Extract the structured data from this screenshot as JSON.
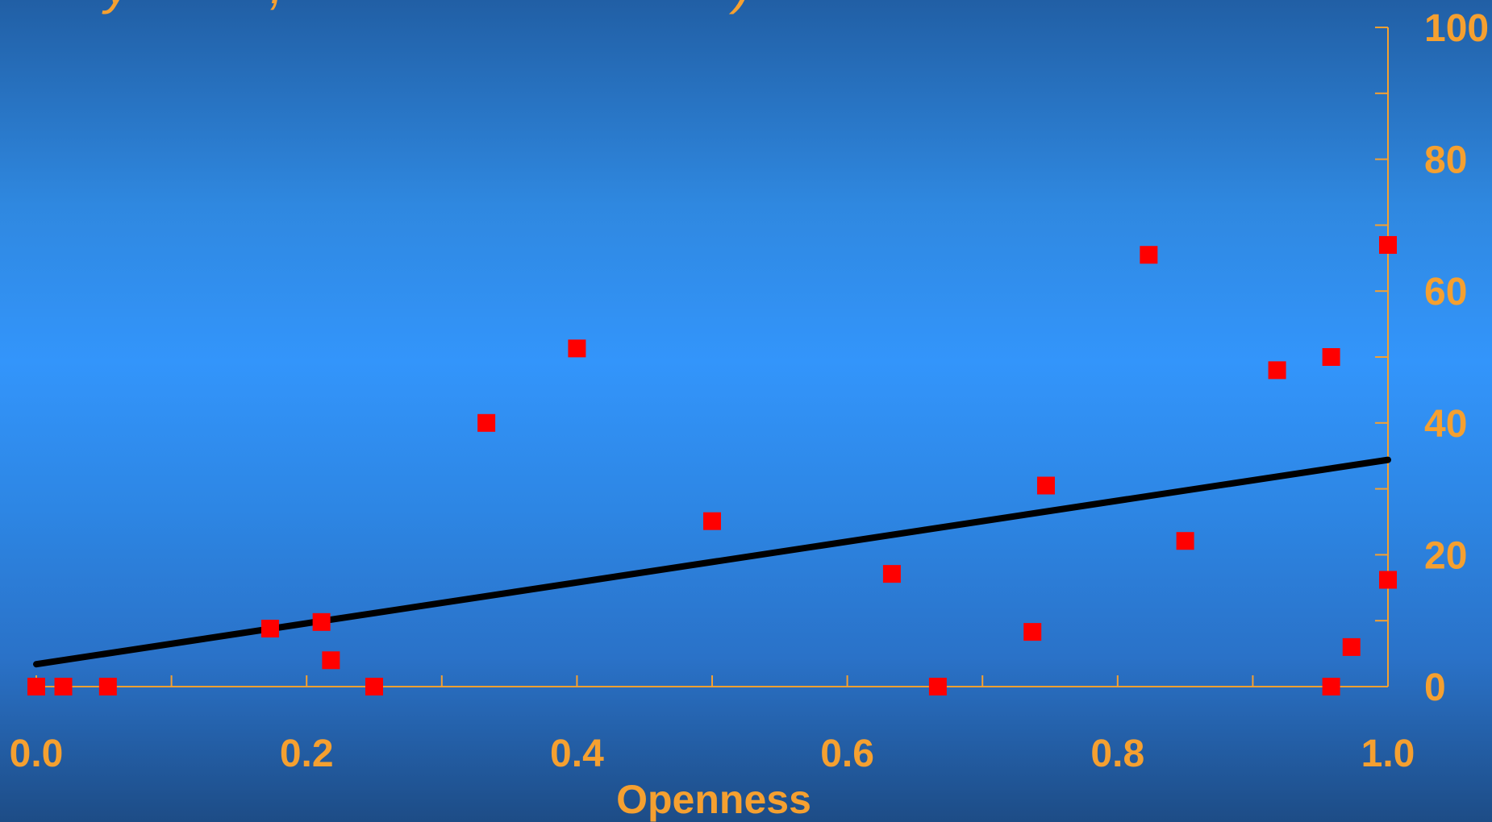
{
  "chart_data": {
    "type": "scatter",
    "title": "",
    "xlabel": "Openness",
    "ylabel": "",
    "xlim": [
      0.0,
      1.0
    ],
    "ylim": [
      0,
      100
    ],
    "x_ticks": [
      "0.0",
      "0.2",
      "0.4",
      "0.6",
      "0.8",
      "1.0"
    ],
    "y_ticks": [
      "0",
      "20",
      "40",
      "60",
      "80",
      "100"
    ],
    "y_axis_position": "right",
    "grid": false,
    "legend": "none",
    "colors": {
      "axis": "#f5a030",
      "marker": "#ff0000",
      "trend_line": "#000000"
    },
    "series": [
      {
        "marker": "square",
        "points": [
          {
            "x": 0.0,
            "y": 0
          },
          {
            "x": 0.02,
            "y": 0
          },
          {
            "x": 0.053,
            "y": 0
          },
          {
            "x": 0.173,
            "y": 8.8
          },
          {
            "x": 0.211,
            "y": 9.8
          },
          {
            "x": 0.218,
            "y": 4
          },
          {
            "x": 0.25,
            "y": 0
          },
          {
            "x": 0.333,
            "y": 40
          },
          {
            "x": 0.4,
            "y": 51.3
          },
          {
            "x": 0.5,
            "y": 25.1
          },
          {
            "x": 0.633,
            "y": 17.1
          },
          {
            "x": 0.667,
            "y": 0
          },
          {
            "x": 0.737,
            "y": 8.3
          },
          {
            "x": 0.747,
            "y": 30.5
          },
          {
            "x": 0.823,
            "y": 65.5
          },
          {
            "x": 0.85,
            "y": 22.1
          },
          {
            "x": 0.918,
            "y": 48
          },
          {
            "x": 0.958,
            "y": 50
          },
          {
            "x": 0.958,
            "y": 0
          },
          {
            "x": 0.973,
            "y": 6
          },
          {
            "x": 1.0,
            "y": 67
          },
          {
            "x": 1.0,
            "y": 16.2
          }
        ]
      }
    ],
    "trend_line": {
      "x": [
        0.0,
        1.0
      ],
      "y": [
        3.4,
        34.4
      ]
    }
  }
}
